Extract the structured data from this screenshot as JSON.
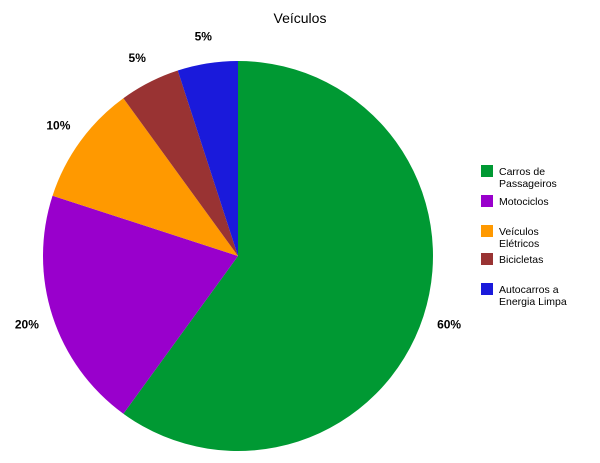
{
  "chart_data": {
    "type": "pie",
    "title": "Veículos",
    "legend_position": "right",
    "start_angle_deg": 0,
    "direction": "clockwise",
    "slices": [
      {
        "label": "Carros de Passageiros",
        "legend_lines": [
          "Carros de",
          "Passageiros"
        ],
        "value": 60,
        "data_label": "60%",
        "color": "#009933"
      },
      {
        "label": "Motociclos",
        "legend_lines": [
          "Motociclos"
        ],
        "value": 20,
        "data_label": "20%",
        "color": "#9900CC"
      },
      {
        "label": "Veículos Elétricos",
        "legend_lines": [
          "Veículos",
          "Elétricos"
        ],
        "value": 10,
        "data_label": "10%",
        "color": "#FF9900"
      },
      {
        "label": "Bicicletas",
        "legend_lines": [
          "Bicicletas"
        ],
        "value": 5,
        "data_label": "5%",
        "color": "#993333"
      },
      {
        "label": "Autocarros a Energia Limpa",
        "legend_lines": [
          "Autocarros a",
          "Energia Limpa"
        ],
        "value": 5,
        "data_label": "5%",
        "color": "#1A1ADB"
      }
    ]
  }
}
